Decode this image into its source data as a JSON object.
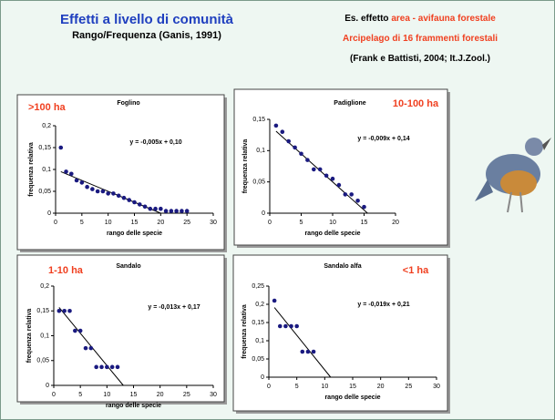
{
  "slide": {
    "title": "Effetti a livello di comunità",
    "subtitle": "Rango/Frequenza (Ganis, 1991)",
    "note_prefix": "Es. effetto ",
    "note_highlight": "area - avifauna forestale",
    "note_line2": "Arcipelago di 16 frammenti forestali",
    "note_line3": "(Frank e Battisti, 2004; It.J.Zool.)"
  },
  "chart_data": [
    {
      "type": "scatter",
      "title": "Foglino",
      "annotation": ">100 ha",
      "xlabel": "rango delle specie",
      "ylabel": "frequenza relativa",
      "color": "#1a1a80",
      "x": [
        1,
        2,
        3,
        4,
        5,
        6,
        7,
        8,
        9,
        10,
        11,
        12,
        13,
        14,
        15,
        16,
        17,
        18,
        19,
        20,
        21,
        22,
        23,
        24,
        25
      ],
      "y": [
        0.15,
        0.095,
        0.09,
        0.075,
        0.07,
        0.06,
        0.055,
        0.05,
        0.05,
        0.045,
        0.045,
        0.04,
        0.035,
        0.03,
        0.025,
        0.02,
        0.015,
        0.01,
        0.01,
        0.01,
        0.005,
        0.005,
        0.005,
        0.005,
        0.005
      ],
      "trendline": {
        "slope": -0.005,
        "intercept": 0.1,
        "label": "y = -0,005x + 0,10"
      },
      "xlim": [
        0,
        30
      ],
      "ylim": [
        0,
        0.2
      ],
      "xticks": [
        0,
        5,
        10,
        15,
        20,
        25,
        30
      ],
      "yticks": [
        0,
        {
          "value": 0.05,
          "label": "0,05"
        },
        {
          "value": 0.1,
          "label": "0,1"
        },
        {
          "value": 0.15,
          "label": "0,15"
        },
        {
          "value": 0.2,
          "label": "0,2"
        }
      ]
    },
    {
      "type": "scatter",
      "title": "Padiglione",
      "annotation": "10-100 ha",
      "xlabel": "rango delle specie",
      "ylabel": "frequenza relativa",
      "color": "#1a1a80",
      "x": [
        1,
        2,
        3,
        4,
        5,
        6,
        7,
        8,
        9,
        10,
        11,
        12,
        13,
        14,
        15
      ],
      "y": [
        0.14,
        0.13,
        0.115,
        0.105,
        0.095,
        0.085,
        0.07,
        0.07,
        0.06,
        0.055,
        0.045,
        0.03,
        0.03,
        0.02,
        0.01
      ],
      "trendline": {
        "slope": -0.009,
        "intercept": 0.14,
        "label": "y = -0,009x + 0,14"
      },
      "xlim": [
        0,
        20
      ],
      "ylim": [
        0,
        0.15
      ],
      "xticks": [
        0,
        5,
        10,
        15,
        20
      ],
      "yticks": [
        0,
        {
          "value": 0.05,
          "label": "0,05"
        },
        {
          "value": 0.1,
          "label": "0,1"
        },
        {
          "value": 0.15,
          "label": "0,15"
        }
      ]
    },
    {
      "type": "scatter",
      "title": "Sandalo",
      "annotation": "1-10 ha",
      "xlabel": "rango delle specie",
      "ylabel": "frequenza relativa",
      "color": "#1a1a80",
      "x": [
        1,
        2,
        3,
        4,
        5,
        6,
        7,
        8,
        9,
        10,
        11,
        12
      ],
      "y": [
        0.15,
        0.15,
        0.15,
        0.11,
        0.11,
        0.075,
        0.075,
        0.037,
        0.037,
        0.037,
        0.037,
        0.037
      ],
      "trendline": {
        "slope": -0.013,
        "intercept": 0.17,
        "label": "y = -0,013x + 0,17"
      },
      "xlim": [
        0,
        30
      ],
      "ylim": [
        0,
        0.2
      ],
      "xticks": [
        0,
        5,
        10,
        15,
        20,
        25,
        30
      ],
      "yticks": [
        0,
        {
          "value": 0.05,
          "label": "0,05"
        },
        {
          "value": 0.1,
          "label": "0,1"
        },
        {
          "value": 0.15,
          "label": "0,15"
        },
        {
          "value": 0.2,
          "label": "0,2"
        }
      ]
    },
    {
      "type": "scatter",
      "title": "Sandalo alfa",
      "annotation": "<1 ha",
      "xlabel": "rango delle specie",
      "ylabel": "frequenza relativa",
      "color": "#1a1a80",
      "x": [
        1,
        2,
        3,
        4,
        5,
        6,
        7,
        8
      ],
      "y": [
        0.21,
        0.14,
        0.14,
        0.14,
        0.14,
        0.07,
        0.07,
        0.07
      ],
      "trendline": {
        "slope": -0.019,
        "intercept": 0.21,
        "label": "y = -0,019x + 0,21"
      },
      "xlim": [
        0,
        30
      ],
      "ylim": [
        0,
        0.25
      ],
      "xticks": [
        0,
        5,
        10,
        15,
        20,
        25,
        30
      ],
      "yticks": [
        0,
        {
          "value": 0.05,
          "label": "0,05"
        },
        {
          "value": 0.1,
          "label": "0,1"
        },
        {
          "value": 0.15,
          "label": "0,15"
        },
        {
          "value": 0.2,
          "label": "0,2"
        },
        {
          "value": 0.25,
          "label": "0,25"
        }
      ]
    }
  ]
}
